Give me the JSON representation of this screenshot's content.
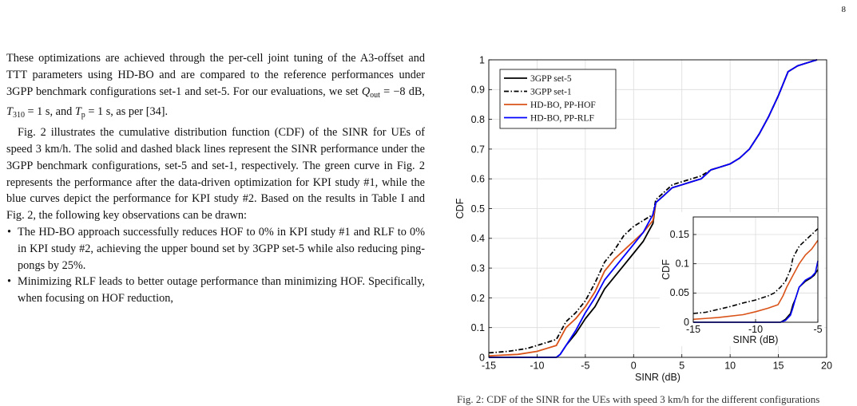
{
  "page_number": "8",
  "text": {
    "p1": "These optimizations are achieved through the per-cell joint tuning of the A3-offset and TTT parameters using HD-BO and are compared to the reference performances under 3GPP benchmark configurations set-1 and set-5. For our evaluations, we set",
    "q_out_sym": "Q",
    "q_out_sub": "out",
    "q_out_val": " = −8 dB, ",
    "t310_sym": "T",
    "t310_sub": "310",
    "t310_val": " = 1 s, and ",
    "tp_sym": "T",
    "tp_sub": "p",
    "tp_val": " = 1 s, as per [34].",
    "p2": "Fig. 2 illustrates the cumulative distribution function (CDF) of the SINR for UEs of speed 3 km/h. The solid and dashed black lines represent the SINR performance under the 3GPP benchmark configurations, set-5 and set-1, respectively. The green curve in Fig. 2 represents the performance after the data-driven optimization for KPI study #1, while the blue curves depict the performance for KPI study #2. Based on the results in Table I and Fig. 2, the following key observations can be drawn:",
    "bullet1": "The HD-BO approach successfully reduces HOF to 0% in KPI study #1 and RLF to 0% in KPI study #2, achieving the upper bound set by 3GPP set-5 while also reducing ping-pongs by 25%.",
    "bullet2": "Minimizing RLF leads to better outage performance than minimizing HOF. Specifically, when focusing on HOF reduction,"
  },
  "caption_tail": "Fig. 2: CDF of the SINR for the UEs with speed 3 km/h for the different configurations",
  "chart_data": [
    {
      "type": "line",
      "xlabel": "SINR (dB)",
      "ylabel": "CDF",
      "xlim": [
        -15,
        20
      ],
      "ylim": [
        0,
        1
      ],
      "xticks": [
        "-15",
        "-10",
        "-5",
        "0",
        "5",
        "10",
        "15",
        "20"
      ],
      "yticks": [
        "0",
        "0.1",
        "0.2",
        "0.3",
        "0.4",
        "0.5",
        "0.6",
        "0.7",
        "0.8",
        "0.9",
        "1"
      ],
      "grid": true,
      "legend_position": "top-left",
      "series": [
        {
          "name": "3GPP set-5",
          "color": "#000000",
          "dash": "solid",
          "x": [
            -15,
            -8,
            -7.6,
            -7,
            -6,
            -5,
            -4,
            -3,
            -2,
            -1.5,
            -1,
            0,
            1,
            1.5,
            2,
            2.3,
            3,
            4,
            5,
            6,
            7,
            8,
            9,
            10,
            11,
            12,
            13,
            14,
            15,
            16,
            17,
            18,
            19
          ],
          "y": [
            0,
            0,
            0.01,
            0.04,
            0.08,
            0.13,
            0.17,
            0.23,
            0.27,
            0.29,
            0.31,
            0.35,
            0.39,
            0.42,
            0.45,
            0.52,
            0.54,
            0.57,
            0.58,
            0.59,
            0.6,
            0.63,
            0.64,
            0.65,
            0.67,
            0.7,
            0.75,
            0.81,
            0.88,
            0.96,
            0.98,
            0.99,
            1.0
          ]
        },
        {
          "name": "3GPP set-1",
          "color": "#000000",
          "dash": "dashed",
          "x": [
            -15,
            -13,
            -11,
            -10,
            -9,
            -8,
            -7.5,
            -7,
            -6,
            -5,
            -4,
            -3,
            -2,
            -1,
            0,
            1,
            2,
            2.3,
            3,
            4,
            5,
            6,
            7,
            8,
            9,
            10,
            11,
            12,
            13,
            14,
            15,
            16,
            17,
            18,
            19
          ],
          "y": [
            0.015,
            0.02,
            0.03,
            0.04,
            0.05,
            0.06,
            0.09,
            0.12,
            0.15,
            0.19,
            0.25,
            0.32,
            0.36,
            0.41,
            0.44,
            0.46,
            0.48,
            0.53,
            0.55,
            0.58,
            0.59,
            0.6,
            0.61,
            0.63,
            0.64,
            0.65,
            0.67,
            0.7,
            0.75,
            0.81,
            0.88,
            0.96,
            0.98,
            0.99,
            1.0
          ]
        },
        {
          "name": "HD-BO, PP-HOF",
          "color": "#d95319",
          "dash": "solid",
          "x": [
            -15,
            -12,
            -10,
            -9,
            -8,
            -7.5,
            -7,
            -6,
            -5,
            -4,
            -3,
            -2,
            -1,
            0,
            1,
            2,
            2.3,
            3,
            4,
            5,
            6,
            7,
            8,
            9,
            10,
            11,
            12,
            13,
            14,
            15,
            16,
            17,
            18,
            19
          ],
          "y": [
            0.005,
            0.01,
            0.02,
            0.03,
            0.04,
            0.07,
            0.1,
            0.13,
            0.17,
            0.22,
            0.29,
            0.33,
            0.36,
            0.39,
            0.42,
            0.46,
            0.52,
            0.54,
            0.57,
            0.58,
            0.59,
            0.6,
            0.63,
            0.64,
            0.65,
            0.67,
            0.7,
            0.75,
            0.81,
            0.88,
            0.96,
            0.98,
            0.99,
            1.0
          ]
        },
        {
          "name": "HD-BO, PP-RLF",
          "color": "#0000ff",
          "dash": "solid",
          "x": [
            -15,
            -8,
            -7.6,
            -7,
            -6,
            -5,
            -4,
            -3,
            -2,
            -1,
            0,
            1,
            1.5,
            2,
            2.3,
            3,
            4,
            5,
            6,
            7,
            8,
            9,
            10,
            11,
            12,
            13,
            14,
            15,
            16,
            17,
            18,
            19
          ],
          "y": [
            0,
            0,
            0.01,
            0.04,
            0.09,
            0.15,
            0.2,
            0.26,
            0.3,
            0.34,
            0.38,
            0.42,
            0.45,
            0.48,
            0.52,
            0.54,
            0.57,
            0.58,
            0.59,
            0.6,
            0.63,
            0.64,
            0.65,
            0.67,
            0.7,
            0.75,
            0.81,
            0.88,
            0.96,
            0.98,
            0.99,
            1.0
          ]
        }
      ]
    },
    {
      "type": "line",
      "xlabel": "SINR (dB)",
      "ylabel": "CDF",
      "xlim": [
        -15,
        -5
      ],
      "ylim": [
        0,
        0.18
      ],
      "xticks": [
        "-15",
        "-10",
        "-5"
      ],
      "yticks": [
        "0",
        "0.05",
        "0.1",
        "0.15"
      ],
      "grid": true,
      "series": [
        {
          "name": "3GPP set-5",
          "color": "#000000",
          "dash": "solid",
          "x": [
            -15,
            -8,
            -7.6,
            -7.2,
            -7,
            -6.8,
            -6.5,
            -6,
            -5.6,
            -5.3,
            -5
          ],
          "y": [
            0,
            0,
            0.005,
            0.015,
            0.03,
            0.04,
            0.06,
            0.07,
            0.075,
            0.08,
            0.09
          ]
        },
        {
          "name": "3GPP set-1",
          "color": "#000000",
          "dash": "dashed",
          "x": [
            -15,
            -14,
            -13,
            -12,
            -11,
            -10,
            -9,
            -8.5,
            -8,
            -7.6,
            -7.2,
            -7,
            -6.5,
            -6,
            -5.5,
            -5
          ],
          "y": [
            0.015,
            0.017,
            0.022,
            0.027,
            0.033,
            0.038,
            0.045,
            0.05,
            0.06,
            0.07,
            0.09,
            0.11,
            0.13,
            0.14,
            0.15,
            0.16
          ]
        },
        {
          "name": "HD-BO, PP-HOF",
          "color": "#d95319",
          "dash": "solid",
          "x": [
            -15,
            -13,
            -11,
            -10,
            -9,
            -8.2,
            -7.8,
            -7.5,
            -7,
            -6.5,
            -6,
            -5.5,
            -5
          ],
          "y": [
            0.005,
            0.008,
            0.013,
            0.018,
            0.024,
            0.03,
            0.045,
            0.06,
            0.08,
            0.1,
            0.115,
            0.125,
            0.14
          ]
        },
        {
          "name": "HD-BO, PP-RLF",
          "color": "#0000ff",
          "dash": "solid",
          "x": [
            -15,
            -8,
            -7.6,
            -7.2,
            -7,
            -6.8,
            -6.5,
            -6,
            -5.5,
            -5.2,
            -5
          ],
          "y": [
            0,
            0,
            0.003,
            0.012,
            0.025,
            0.04,
            0.06,
            0.072,
            0.078,
            0.085,
            0.105
          ]
        }
      ]
    }
  ]
}
